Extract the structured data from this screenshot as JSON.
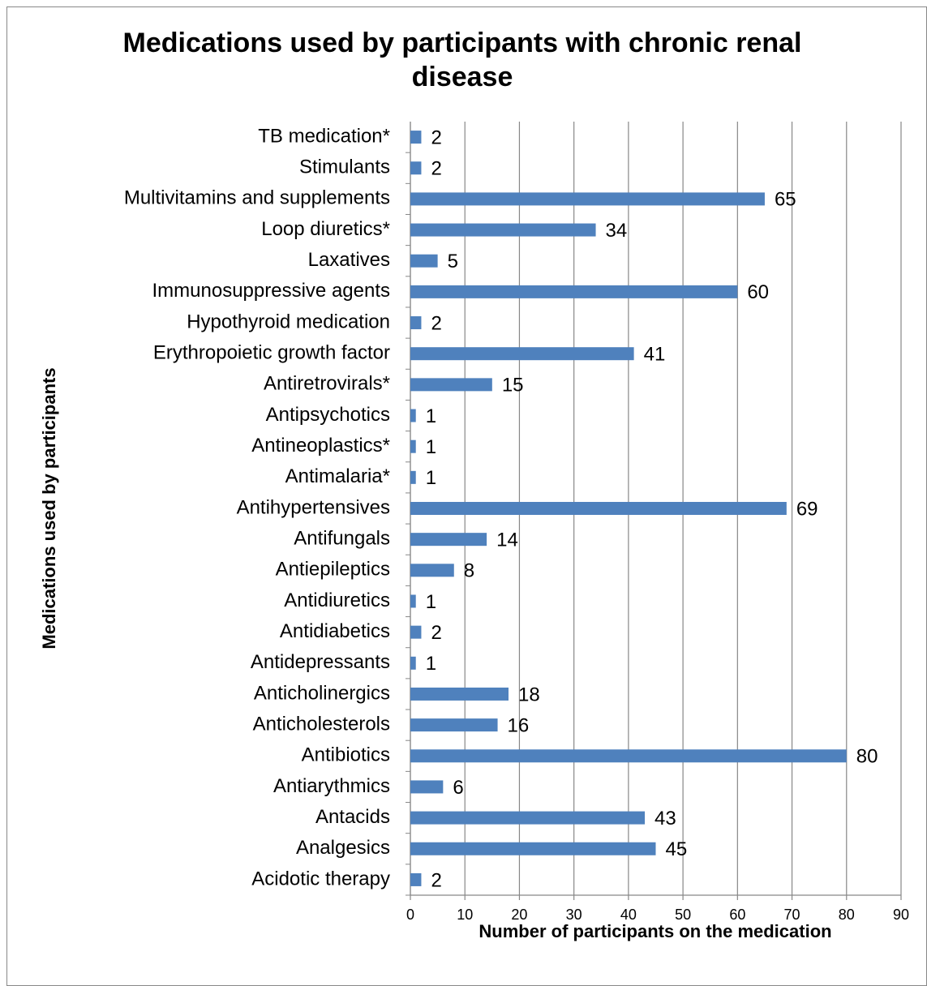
{
  "chart_data": {
    "type": "bar",
    "orientation": "horizontal",
    "title": "Medications used by participants with chronic renal disease",
    "xlabel": "Number of participants on the medication",
    "ylabel": "Medications used by participants",
    "categories": [
      "Acidotic therapy",
      "Analgesics",
      "Antacids",
      "Antiarythmics",
      "Antibiotics",
      "Anticholesterols",
      "Anticholinergics",
      "Antidepressants",
      "Antidiabetics",
      "Antidiuretics",
      "Antiepileptics",
      "Antifungals",
      "Antihypertensives",
      "Antimalaria*",
      "Antineoplastics*",
      "Antipsychotics",
      "Antiretrovirals*",
      "Erythropoietic growth factor",
      "Hypothyroid medication",
      "Immunosuppressive agents",
      "Laxatives",
      "Loop diuretics*",
      "Multivitamins and supplements",
      "Stimulants",
      "TB medication*"
    ],
    "values": [
      2,
      45,
      43,
      6,
      80,
      16,
      18,
      1,
      2,
      1,
      8,
      14,
      69,
      1,
      1,
      1,
      15,
      41,
      2,
      60,
      5,
      34,
      65,
      2,
      2
    ],
    "color": "#4f81bd",
    "xlim": [
      0,
      90
    ],
    "xticks": [
      0,
      10,
      20,
      30,
      40,
      50,
      60,
      70,
      80,
      90
    ],
    "grid": true
  }
}
